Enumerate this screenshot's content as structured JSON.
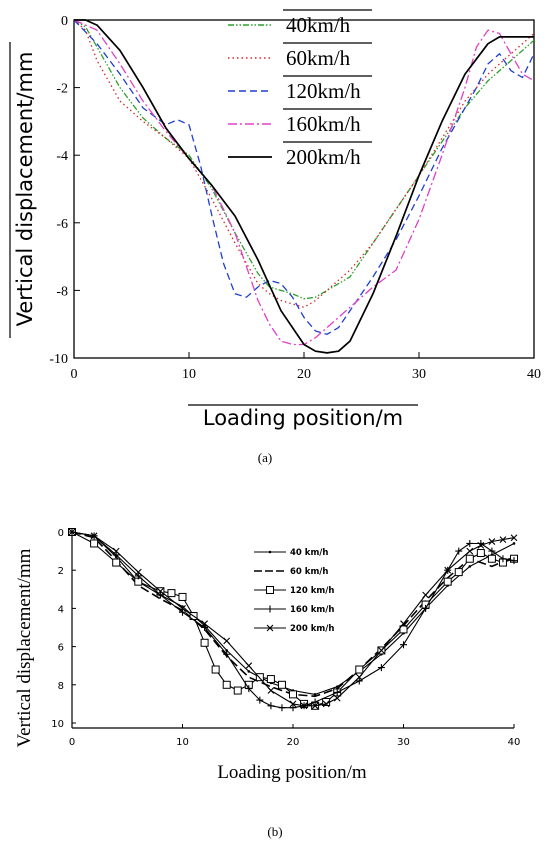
{
  "chart_data": [
    {
      "panel": "(a)",
      "type": "line",
      "xlabel": "Loading position/m",
      "ylabel": "Vertical displacement/mm",
      "xlim": [
        0,
        40
      ],
      "ylim": [
        -10,
        0
      ],
      "xticks": [
        0,
        10,
        20,
        30,
        40
      ],
      "yticks": [
        0,
        -2,
        -4,
        -6,
        -8,
        -10
      ],
      "grid": false,
      "legend": "top-center",
      "series": [
        {
          "name": "40km/h",
          "color": "#2ca02c",
          "dash": "6,2,1.5,2,1.5,2",
          "x": [
            0,
            1,
            2,
            4,
            6,
            8,
            10,
            12,
            14,
            16,
            17,
            18,
            19,
            20,
            21,
            22,
            24,
            26,
            28,
            30,
            32,
            34,
            36,
            38,
            40
          ],
          "y": [
            0,
            -0.2,
            -0.8,
            -2.0,
            -2.9,
            -3.5,
            -4.0,
            -5.0,
            -6.3,
            -7.5,
            -7.9,
            -8.0,
            -8.1,
            -8.25,
            -8.2,
            -8.0,
            -7.6,
            -6.6,
            -5.6,
            -4.6,
            -3.6,
            -2.6,
            -1.8,
            -1.2,
            -0.6
          ]
        },
        {
          "name": "60km/h",
          "color": "#d62728",
          "dash": "1.5,3",
          "x": [
            0,
            1,
            2,
            4,
            6,
            8,
            10,
            12,
            14,
            16,
            17,
            18,
            19,
            20,
            21,
            22,
            24,
            26,
            28,
            30,
            32,
            34,
            36,
            38,
            40
          ],
          "y": [
            0,
            -0.3,
            -1.2,
            -2.4,
            -3.0,
            -3.5,
            -4.1,
            -5.3,
            -6.6,
            -7.8,
            -8.1,
            -8.3,
            -8.4,
            -8.5,
            -8.3,
            -8.0,
            -7.4,
            -6.6,
            -5.6,
            -4.6,
            -3.5,
            -2.4,
            -1.6,
            -1.0,
            -0.4
          ]
        },
        {
          "name": "120km/h",
          "color": "#1f3fd1",
          "dash": "7,4",
          "x": [
            0,
            2,
            4,
            6,
            8,
            9,
            10,
            11,
            12,
            13,
            14,
            15,
            16,
            17,
            18,
            19,
            20,
            21,
            22,
            23,
            24,
            26,
            28,
            30,
            32,
            34,
            35,
            36,
            37,
            38,
            39,
            40
          ],
          "y": [
            0,
            -0.7,
            -1.6,
            -2.6,
            -3.1,
            -2.95,
            -3.1,
            -4.3,
            -5.8,
            -7.2,
            -8.1,
            -8.2,
            -7.9,
            -7.7,
            -7.8,
            -8.2,
            -8.8,
            -9.2,
            -9.3,
            -9.1,
            -8.6,
            -7.6,
            -6.5,
            -5.2,
            -3.8,
            -2.6,
            -2.0,
            -1.3,
            -1.0,
            -1.5,
            -1.7,
            -1.0
          ]
        },
        {
          "name": "160km/h",
          "color": "#e040c8",
          "dash": "9,3,2,3",
          "x": [
            0,
            2,
            4,
            6,
            8,
            10,
            12,
            14,
            16,
            17,
            18,
            19,
            20,
            21,
            22,
            24,
            26,
            28,
            30,
            32,
            34,
            35,
            36,
            37,
            38,
            39,
            40
          ],
          "y": [
            0,
            -0.3,
            -1.3,
            -2.4,
            -3.3,
            -4.1,
            -4.9,
            -6.3,
            -8.3,
            -9.0,
            -9.5,
            -9.6,
            -9.6,
            -9.4,
            -9.1,
            -8.5,
            -7.9,
            -7.4,
            -5.9,
            -4.0,
            -2.0,
            -0.8,
            -0.3,
            -0.4,
            -1.0,
            -1.6,
            -1.8
          ]
        },
        {
          "name": "200km/h",
          "color": "#000000",
          "dash": "",
          "x": [
            0,
            1,
            2,
            4,
            6,
            8,
            10,
            12,
            14,
            16,
            18,
            20,
            21,
            22,
            23,
            24,
            26,
            28,
            30,
            32,
            34,
            36,
            37,
            38,
            39,
            40
          ],
          "y": [
            0,
            0,
            -0.15,
            -0.9,
            -2.0,
            -3.2,
            -4.1,
            -4.9,
            -5.8,
            -7.1,
            -8.6,
            -9.6,
            -9.8,
            -9.85,
            -9.8,
            -9.5,
            -8.1,
            -6.4,
            -4.6,
            -3.0,
            -1.6,
            -0.7,
            -0.5,
            -0.5,
            -0.5,
            -0.5
          ]
        }
      ]
    },
    {
      "panel": "(b)",
      "type": "line",
      "xlabel": "Loading position/m",
      "ylabel": "Vertical displacement/mm",
      "xlim": [
        0,
        40
      ],
      "ylim": [
        10,
        0
      ],
      "xticks": [
        0,
        10,
        20,
        30,
        40
      ],
      "yticks": [
        0,
        2,
        4,
        6,
        8,
        10
      ],
      "grid": false,
      "legend": "top-center",
      "series": [
        {
          "name": "40 km/h",
          "marker": "dot",
          "x": [
            0,
            2,
            4,
            6,
            8,
            10,
            12,
            14,
            16,
            18,
            20,
            22,
            24,
            26,
            28,
            30,
            32,
            34,
            36,
            38,
            40
          ],
          "y": [
            0,
            0.2,
            1.3,
            2.6,
            3.3,
            3.9,
            4.9,
            6.2,
            7.3,
            7.9,
            8.3,
            8.5,
            8.1,
            7.3,
            6.4,
            5.3,
            4.0,
            2.8,
            1.8,
            1.2,
            0.6
          ]
        },
        {
          "name": "60 km/h",
          "marker": "long-dash",
          "x": [
            0,
            2,
            4,
            6,
            8,
            10,
            12,
            14,
            16,
            18,
            20,
            22,
            24,
            26,
            28,
            30,
            32,
            34,
            36,
            38,
            40
          ],
          "y": [
            0,
            0.3,
            1.5,
            2.8,
            3.5,
            4.1,
            5.1,
            6.5,
            7.6,
            8.1,
            8.5,
            8.6,
            8.2,
            7.2,
            6.1,
            4.9,
            3.6,
            2.4,
            1.4,
            1.8,
            1.3
          ]
        },
        {
          "name": "120 km/h",
          "marker": "square",
          "x": [
            0,
            2,
            4,
            6,
            8,
            9,
            10,
            11,
            12,
            13,
            14,
            15,
            16,
            17,
            18,
            19,
            20,
            21,
            22,
            23,
            24,
            26,
            28,
            30,
            32,
            34,
            35,
            36,
            37,
            38,
            39,
            40
          ],
          "y": [
            0,
            0.6,
            1.6,
            2.6,
            3.1,
            3.2,
            3.4,
            4.4,
            5.8,
            7.2,
            8.0,
            8.3,
            8.0,
            7.6,
            7.7,
            8.0,
            8.5,
            9.0,
            9.1,
            8.9,
            8.4,
            7.2,
            6.2,
            5.1,
            3.8,
            2.6,
            2.1,
            1.4,
            1.1,
            1.4,
            1.6,
            1.4
          ]
        },
        {
          "name": "160 km/h",
          "marker": "plus",
          "x": [
            0,
            2,
            4,
            6,
            8,
            10,
            12,
            14,
            16,
            17,
            18,
            19,
            20,
            21,
            22,
            24,
            26,
            28,
            30,
            32,
            34,
            35,
            36,
            37,
            38,
            39,
            40
          ],
          "y": [
            0,
            0.2,
            1.2,
            2.3,
            3.3,
            4.2,
            5.0,
            6.4,
            8.2,
            8.8,
            9.1,
            9.2,
            9.2,
            9.1,
            8.9,
            8.4,
            7.8,
            7.1,
            5.9,
            4.0,
            2.0,
            1.0,
            0.6,
            0.6,
            1.0,
            1.4,
            1.5
          ]
        },
        {
          "name": "200 km/h",
          "marker": "x",
          "x": [
            0,
            2,
            4,
            6,
            8,
            10,
            12,
            14,
            16,
            18,
            20,
            21,
            22,
            23,
            24,
            26,
            28,
            30,
            32,
            34,
            36,
            37,
            38,
            39,
            40
          ],
          "y": [
            0,
            0.2,
            1.0,
            2.1,
            3.1,
            4.0,
            4.8,
            5.7,
            7.0,
            8.3,
            9.0,
            9.1,
            9.1,
            9.0,
            8.7,
            7.6,
            6.2,
            4.8,
            3.3,
            2.0,
            1.0,
            0.7,
            0.5,
            0.4,
            0.3
          ]
        }
      ]
    }
  ],
  "captions": {
    "a": "(a)",
    "b": "(b)"
  }
}
